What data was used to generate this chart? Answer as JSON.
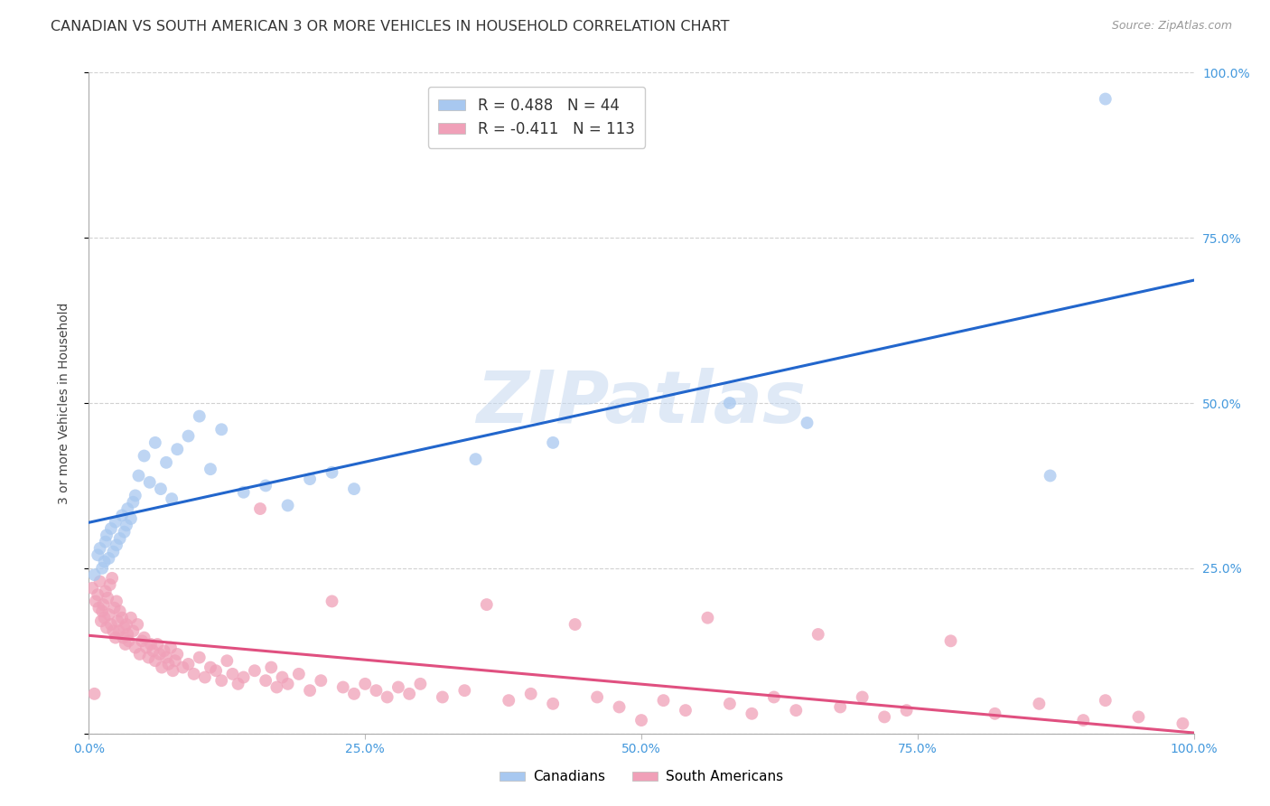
{
  "title": "CANADIAN VS SOUTH AMERICAN 3 OR MORE VEHICLES IN HOUSEHOLD CORRELATION CHART",
  "source": "Source: ZipAtlas.com",
  "ylabel": "3 or more Vehicles in Household",
  "watermark": "ZIPatlas",
  "xlim": [
    0,
    1
  ],
  "ylim": [
    0,
    1
  ],
  "xticks": [
    0.0,
    0.25,
    0.5,
    0.75,
    1.0
  ],
  "yticks": [
    0.0,
    0.25,
    0.5,
    0.75,
    1.0
  ],
  "xticklabels": [
    "0.0%",
    "25.0%",
    "50.0%",
    "75.0%",
    "100.0%"
  ],
  "yticklabels_right": [
    "",
    "25.0%",
    "50.0%",
    "75.0%",
    "100.0%"
  ],
  "canadians": {
    "color": "#a8c8f0",
    "line_color": "#2266cc",
    "R": 0.488,
    "N": 44,
    "x": [
      0.005,
      0.008,
      0.01,
      0.012,
      0.014,
      0.015,
      0.016,
      0.018,
      0.02,
      0.022,
      0.024,
      0.025,
      0.028,
      0.03,
      0.032,
      0.034,
      0.035,
      0.038,
      0.04,
      0.042,
      0.045,
      0.05,
      0.055,
      0.06,
      0.065,
      0.07,
      0.075,
      0.08,
      0.09,
      0.1,
      0.11,
      0.12,
      0.14,
      0.16,
      0.18,
      0.2,
      0.22,
      0.24,
      0.35,
      0.42,
      0.58,
      0.65,
      0.87,
      0.92
    ],
    "y": [
      0.24,
      0.27,
      0.28,
      0.25,
      0.26,
      0.29,
      0.3,
      0.265,
      0.31,
      0.275,
      0.32,
      0.285,
      0.295,
      0.33,
      0.305,
      0.315,
      0.34,
      0.325,
      0.35,
      0.36,
      0.39,
      0.42,
      0.38,
      0.44,
      0.37,
      0.41,
      0.355,
      0.43,
      0.45,
      0.48,
      0.4,
      0.46,
      0.365,
      0.375,
      0.345,
      0.385,
      0.395,
      0.37,
      0.415,
      0.44,
      0.5,
      0.47,
      0.39,
      0.96
    ]
  },
  "south_americans": {
    "color": "#f0a0b8",
    "line_color": "#e05080",
    "R": -0.411,
    "N": 113,
    "x": [
      0.003,
      0.005,
      0.006,
      0.008,
      0.009,
      0.01,
      0.011,
      0.012,
      0.013,
      0.014,
      0.015,
      0.016,
      0.017,
      0.018,
      0.019,
      0.02,
      0.021,
      0.022,
      0.023,
      0.024,
      0.025,
      0.026,
      0.027,
      0.028,
      0.03,
      0.031,
      0.032,
      0.033,
      0.034,
      0.035,
      0.036,
      0.038,
      0.04,
      0.042,
      0.044,
      0.046,
      0.048,
      0.05,
      0.052,
      0.054,
      0.056,
      0.058,
      0.06,
      0.062,
      0.064,
      0.066,
      0.068,
      0.07,
      0.072,
      0.074,
      0.076,
      0.078,
      0.08,
      0.085,
      0.09,
      0.095,
      0.1,
      0.105,
      0.11,
      0.115,
      0.12,
      0.125,
      0.13,
      0.135,
      0.14,
      0.15,
      0.155,
      0.16,
      0.165,
      0.17,
      0.175,
      0.18,
      0.19,
      0.2,
      0.21,
      0.22,
      0.23,
      0.24,
      0.25,
      0.26,
      0.27,
      0.28,
      0.29,
      0.3,
      0.32,
      0.34,
      0.36,
      0.38,
      0.4,
      0.42,
      0.44,
      0.46,
      0.48,
      0.5,
      0.52,
      0.54,
      0.56,
      0.58,
      0.6,
      0.62,
      0.64,
      0.66,
      0.68,
      0.7,
      0.72,
      0.74,
      0.78,
      0.82,
      0.86,
      0.9,
      0.92,
      0.95,
      0.99
    ],
    "y": [
      0.22,
      0.06,
      0.2,
      0.21,
      0.19,
      0.23,
      0.17,
      0.185,
      0.195,
      0.175,
      0.215,
      0.16,
      0.205,
      0.18,
      0.225,
      0.165,
      0.235,
      0.155,
      0.19,
      0.145,
      0.2,
      0.17,
      0.155,
      0.185,
      0.175,
      0.145,
      0.16,
      0.135,
      0.165,
      0.15,
      0.14,
      0.175,
      0.155,
      0.13,
      0.165,
      0.12,
      0.14,
      0.145,
      0.13,
      0.115,
      0.135,
      0.125,
      0.11,
      0.135,
      0.12,
      0.1,
      0.125,
      0.115,
      0.105,
      0.13,
      0.095,
      0.11,
      0.12,
      0.1,
      0.105,
      0.09,
      0.115,
      0.085,
      0.1,
      0.095,
      0.08,
      0.11,
      0.09,
      0.075,
      0.085,
      0.095,
      0.34,
      0.08,
      0.1,
      0.07,
      0.085,
      0.075,
      0.09,
      0.065,
      0.08,
      0.2,
      0.07,
      0.06,
      0.075,
      0.065,
      0.055,
      0.07,
      0.06,
      0.075,
      0.055,
      0.065,
      0.195,
      0.05,
      0.06,
      0.045,
      0.165,
      0.055,
      0.04,
      0.02,
      0.05,
      0.035,
      0.175,
      0.045,
      0.03,
      0.055,
      0.035,
      0.15,
      0.04,
      0.055,
      0.025,
      0.035,
      0.14,
      0.03,
      0.045,
      0.02,
      0.05,
      0.025,
      0.015
    ]
  },
  "background_color": "#ffffff",
  "grid_color": "#cccccc",
  "title_fontsize": 11.5,
  "axis_fontsize": 10,
  "tick_fontsize": 10
}
